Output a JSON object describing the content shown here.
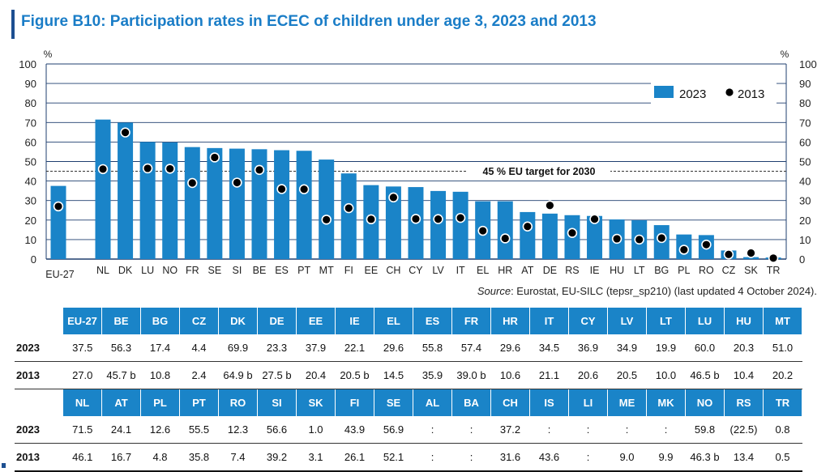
{
  "header": {
    "title": "Figure B10: Participation rates in ECEC of children under age 3, 2023 and 2013"
  },
  "colors": {
    "bar": "#1a84c8",
    "title": "#1a7dc7",
    "accent": "#1d4f91",
    "dot": "#000000"
  },
  "chart_data": {
    "type": "bar",
    "ylim": [
      0,
      100
    ],
    "yticks": [
      0,
      10,
      20,
      30,
      40,
      50,
      60,
      70,
      80,
      90,
      100
    ],
    "yunit": "%",
    "categories": [
      "EU-27",
      "NL",
      "DK",
      "LU",
      "NO",
      "FR",
      "SE",
      "SI",
      "BE",
      "ES",
      "PT",
      "MT",
      "FI",
      "EE",
      "CH",
      "CY",
      "LV",
      "IT",
      "EL",
      "HR",
      "AT",
      "DE",
      "RS",
      "IE",
      "HU",
      "LT",
      "BG",
      "PL",
      "RO",
      "CZ",
      "SK",
      "TR"
    ],
    "series": [
      {
        "name": "2023",
        "kind": "bar",
        "values": [
          37.5,
          71.5,
          69.9,
          60.0,
          59.8,
          57.4,
          56.9,
          56.6,
          56.3,
          55.8,
          55.5,
          51.0,
          43.9,
          37.9,
          37.2,
          36.9,
          34.9,
          34.5,
          29.6,
          29.6,
          24.1,
          23.3,
          22.5,
          22.1,
          20.3,
          19.9,
          17.4,
          12.6,
          12.3,
          4.4,
          1.0,
          0.8
        ]
      },
      {
        "name": "2013",
        "kind": "dot",
        "values": [
          27.0,
          46.1,
          64.9,
          46.5,
          46.3,
          39.0,
          52.1,
          39.2,
          45.7,
          35.9,
          35.8,
          20.2,
          26.1,
          20.4,
          31.6,
          20.6,
          20.5,
          21.1,
          14.5,
          10.6,
          16.7,
          27.5,
          13.4,
          20.5,
          10.4,
          10.0,
          10.8,
          4.8,
          7.4,
          2.4,
          3.1,
          0.5
        ]
      }
    ],
    "target": {
      "value": 45,
      "label": "45 % EU target for 2030"
    },
    "legend": {
      "position": "top-right",
      "items": [
        "2023",
        "2013"
      ]
    }
  },
  "source": {
    "label": "Source",
    "text": ": Eurostat, EU-SILC (tepsr_sp210) (last updated 4 October 2024)."
  },
  "table": {
    "blocks": [
      {
        "headers": [
          "EU-27",
          "BE",
          "BG",
          "CZ",
          "DK",
          "DE",
          "EE",
          "IE",
          "EL",
          "ES",
          "FR",
          "HR",
          "IT",
          "CY",
          "LV",
          "LT",
          "LU",
          "HU",
          "MT"
        ],
        "rows": [
          {
            "label": "2023",
            "cells": [
              "37.5",
              "56.3",
              "17.4",
              "4.4",
              "69.9",
              "23.3",
              "37.9",
              "22.1",
              "29.6",
              "55.8",
              "57.4",
              "29.6",
              "34.5",
              "36.9",
              "34.9",
              "19.9",
              "60.0",
              "20.3",
              "51.0"
            ]
          },
          {
            "label": "2013",
            "cells": [
              "27.0",
              "45.7 b",
              "10.8",
              "2.4",
              "64.9 b",
              "27.5 b",
              "20.4",
              "20.5 b",
              "14.5",
              "35.9",
              "39.0 b",
              "10.6",
              "21.1",
              "20.6",
              "20.5",
              "10.0",
              "46.5 b",
              "10.4",
              "20.2"
            ]
          }
        ]
      },
      {
        "headers": [
          "NL",
          "AT",
          "PL",
          "PT",
          "RO",
          "SI",
          "SK",
          "FI",
          "SE",
          "AL",
          "BA",
          "CH",
          "IS",
          "LI",
          "ME",
          "MK",
          "NO",
          "RS",
          "TR"
        ],
        "rows": [
          {
            "label": "2023",
            "cells": [
              "71.5",
              "24.1",
              "12.6",
              "55.5",
              "12.3",
              "56.6",
              "1.0",
              "43.9",
              "56.9",
              ":",
              ":",
              "37.2",
              ":",
              ":",
              ":",
              ":",
              "59.8",
              "(22.5)",
              "0.8"
            ]
          },
          {
            "label": "2013",
            "cells": [
              "46.1",
              "16.7",
              "4.8",
              "35.8",
              "7.4",
              "39.2",
              "3.1",
              "26.1",
              "52.1",
              ":",
              ":",
              "31.6",
              "43.6",
              ":",
              "9.0",
              "9.9",
              "46.3 b",
              "13.4",
              "0.5"
            ]
          }
        ]
      }
    ]
  }
}
